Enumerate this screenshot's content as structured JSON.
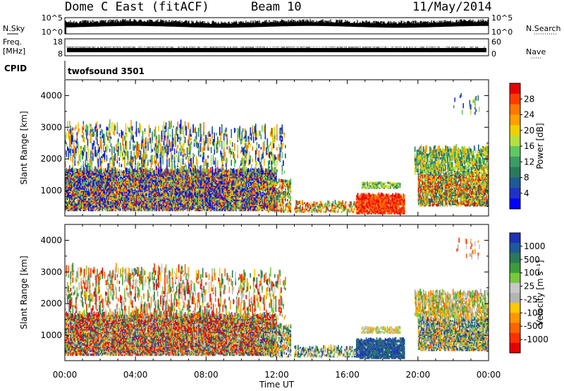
{
  "header": {
    "station": "Dome C East (fitACF)",
    "beam": "Beam 10",
    "date": "11/May/2014"
  },
  "panels": {
    "nsky_label": "N.Sky",
    "nsearch_label": "N.Search",
    "nsky_ticks": [
      "10^5",
      "10^0"
    ],
    "nsearch_ticks": [
      "10^5",
      "10^0"
    ],
    "freq_label": "Freq.",
    "freq_unit": "[MHz]",
    "freq_ticks": [
      "18",
      "8"
    ],
    "nave_label": "Nave",
    "nave_ticks": [
      "60",
      "0"
    ],
    "cpid_label": "CPID",
    "cpid_value": "twofsound 3501"
  },
  "chart_data": [
    {
      "type": "heatmap",
      "name": "power",
      "ylabel": "Slant Range [km]",
      "yticks": [
        1000,
        2000,
        3000,
        4000
      ],
      "ylim": [
        200,
        4500
      ],
      "colorbar": {
        "label": "Power [dB]",
        "ticks": [
          "28",
          "24",
          "20",
          "16",
          "12",
          "8",
          "4"
        ],
        "colors": [
          "#e60000",
          "#ff3c00",
          "#ff7800",
          "#ffa000",
          "#f0d000",
          "#b4e040",
          "#60c860",
          "#3c9c64",
          "#2a7a5a",
          "#1e5a96",
          "#1e32c8",
          "#0000ff"
        ]
      }
    },
    {
      "type": "heatmap",
      "name": "velocity",
      "ylabel": "Slant Range [km]",
      "yticks": [
        1000,
        2000,
        3000,
        4000
      ],
      "ylim": [
        200,
        4500
      ],
      "xlabel": "Time UT",
      "xticks": [
        "00:00",
        "04:00",
        "08:00",
        "12:00",
        "16:00",
        "20:00",
        "00:00"
      ],
      "colorbar": {
        "label": "Velocity [m s⁻¹]",
        "ticks": [
          "1000",
          "500",
          "100",
          "25",
          "-25",
          "-100",
          "-500",
          "-1000"
        ],
        "colors": [
          "#1e32b4",
          "#1e5a9a",
          "#2a7a5a",
          "#3c9c3c",
          "#78c83c",
          "#c8c8c8",
          "#b4b4b4",
          "#ffc800",
          "#ff9600",
          "#ff6400",
          "#ff3000",
          "#e60000"
        ]
      }
    }
  ]
}
